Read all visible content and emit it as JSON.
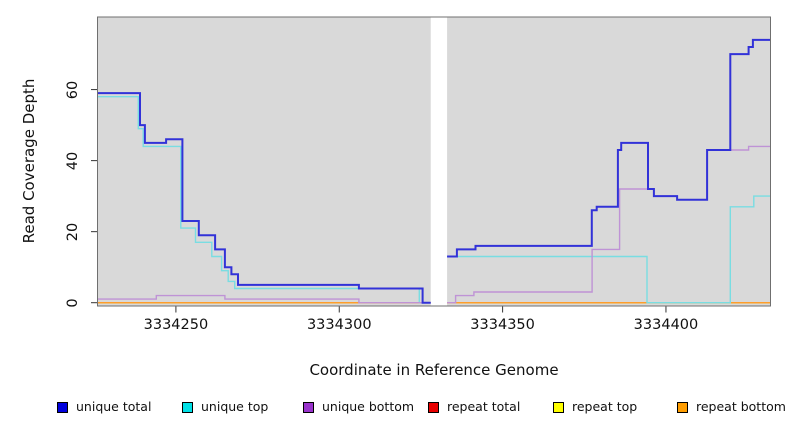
{
  "chart_data": {
    "type": "line",
    "subtype": "step",
    "title": "",
    "xlabel": "Coordinate in Reference Genome",
    "ylabel": "Read Coverage Depth",
    "x_ticks": [
      3334250,
      3334300,
      3334350,
      3334400
    ],
    "y_ticks": [
      0,
      20,
      40,
      60
    ],
    "x_range": [
      3334226,
      3334432
    ],
    "y_range": [
      0,
      80
    ],
    "panel_bg": "#d9d9d9",
    "no_data_gap": [
      3334328,
      3334333
    ],
    "grid": false,
    "legend_position": "bottom",
    "series": [
      {
        "name": "unique total",
        "line_color": "#3232d8",
        "legend_color": "#0000dd",
        "width": 2,
        "z": 5,
        "segments": [
          {
            "points": [
              [
                3334226,
                59
              ],
              [
                3334239,
                50
              ],
              [
                3334240.5,
                45
              ],
              [
                3334247,
                46
              ],
              [
                3334252,
                23
              ],
              [
                3334257,
                19
              ],
              [
                3334262,
                15
              ],
              [
                3334265,
                10
              ],
              [
                3334267,
                8
              ],
              [
                3334269,
                5
              ],
              [
                3334306,
                4
              ],
              [
                3334325.5,
                0
              ]
            ],
            "end": 3334328
          },
          {
            "points": [
              [
                3334333,
                13
              ],
              [
                3334336,
                15
              ],
              [
                3334341.7,
                16
              ],
              [
                3334377.3,
                26
              ],
              [
                3334378.8,
                27
              ],
              [
                3334385.3,
                43
              ],
              [
                3334386.3,
                45
              ],
              [
                3334394.5,
                32
              ],
              [
                3334396.3,
                30
              ],
              [
                3334403.4,
                29
              ],
              [
                3334412.6,
                43
              ],
              [
                3334419.7,
                70
              ],
              [
                3334425.3,
                72
              ],
              [
                3334426.6,
                74
              ]
            ],
            "end": 3334432
          }
        ]
      },
      {
        "name": "unique top",
        "line_color": "#79dde2",
        "legend_color": "#00e0e6",
        "width": 1.4,
        "z": 3,
        "segments": [
          {
            "points": [
              [
                3334226,
                58
              ],
              [
                3334238.5,
                49
              ],
              [
                3334240,
                44
              ],
              [
                3334251.5,
                21
              ],
              [
                3334256,
                17
              ],
              [
                3334261,
                13
              ],
              [
                3334264,
                9
              ],
              [
                3334266,
                6
              ],
              [
                3334268,
                4
              ],
              [
                3334324.5,
                0
              ]
            ],
            "end": 3334328
          },
          {
            "points": [
              [
                3334333,
                13
              ],
              [
                3334394.2,
                0
              ],
              [
                3334419.7,
                27
              ],
              [
                3334426.9,
                30
              ]
            ],
            "end": 3334432
          }
        ]
      },
      {
        "name": "unique bottom",
        "line_color": "#bf93d6",
        "legend_color": "#9933cc",
        "width": 1.4,
        "z": 4,
        "segments": [
          {
            "points": [
              [
                3334226,
                1
              ],
              [
                3334244,
                2
              ],
              [
                3334265,
                1
              ],
              [
                3334306,
                0
              ]
            ],
            "end": 3334328
          },
          {
            "points": [
              [
                3334333,
                0
              ],
              [
                3334335.6,
                2
              ],
              [
                3334341.2,
                3
              ],
              [
                3334377.4,
                15
              ],
              [
                3334385.8,
                32
              ],
              [
                3334396.3,
                30
              ],
              [
                3334403.4,
                29
              ],
              [
                3334412.6,
                43
              ],
              [
                3334425.3,
                44
              ]
            ],
            "end": 3334432
          }
        ]
      },
      {
        "name": "repeat total",
        "line_color": "#dd2222",
        "legend_color": "#e80000",
        "width": 1.3,
        "z": 0,
        "segments": [
          {
            "points": [
              [
                3334226,
                0
              ]
            ],
            "end": 3334328
          },
          {
            "points": [
              [
                3334333,
                0
              ]
            ],
            "end": 3334432
          }
        ]
      },
      {
        "name": "repeat top",
        "line_color": "#ffee00",
        "legend_color": "#ffff00",
        "width": 1.3,
        "z": 1,
        "segments": [
          {
            "points": [
              [
                3334226,
                0
              ]
            ],
            "end": 3334328
          },
          {
            "points": [
              [
                3334333,
                0
              ]
            ],
            "end": 3334432
          }
        ]
      },
      {
        "name": "repeat bottom",
        "line_color": "#ff9d2b",
        "legend_color": "#ff9d00",
        "width": 1.4,
        "z": 2,
        "segments": [
          {
            "points": [
              [
                3334226,
                0
              ]
            ],
            "end": 3334328
          },
          {
            "points": [
              [
                3334333,
                0
              ]
            ],
            "end": 3334432
          }
        ]
      }
    ],
    "legend": [
      {
        "label": "unique total",
        "color": "#0000dd"
      },
      {
        "label": "unique top",
        "color": "#00e0e6"
      },
      {
        "label": "unique bottom",
        "color": "#9933cc"
      },
      {
        "label": "repeat total",
        "color": "#e80000"
      },
      {
        "label": "repeat top",
        "color": "#ffff00"
      },
      {
        "label": "repeat bottom",
        "color": "#ff9d00"
      }
    ]
  }
}
